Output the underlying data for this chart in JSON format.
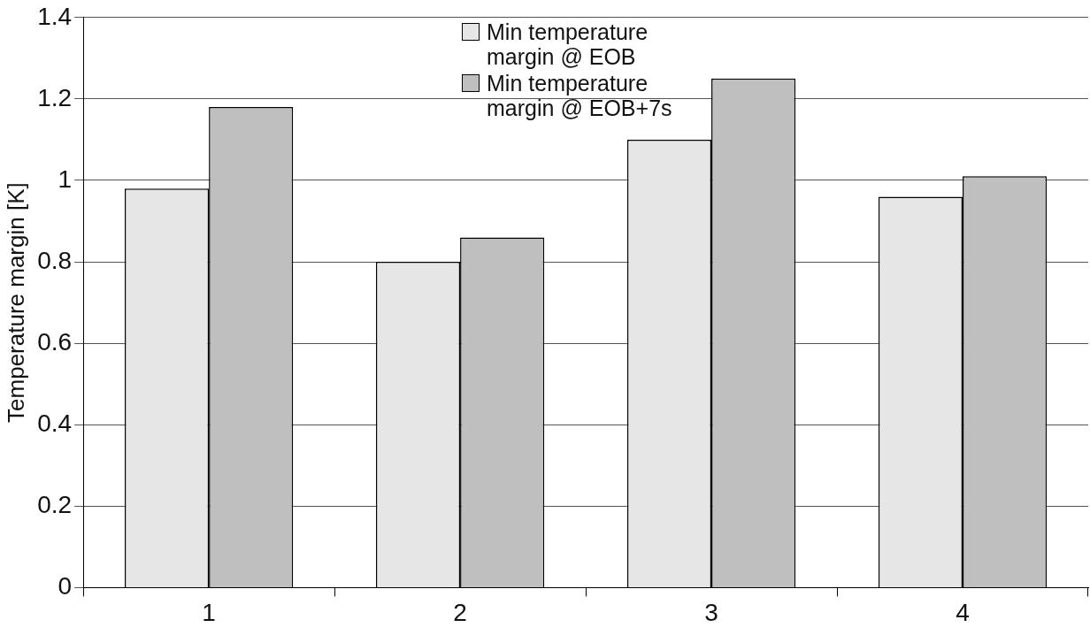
{
  "chart_data": {
    "type": "bar",
    "ylabel": "Temperature margin [K]",
    "categories": [
      "1",
      "2",
      "3",
      "4"
    ],
    "series": [
      {
        "name": "Min temperature margin @ EOB",
        "color": "#e6e6e6",
        "values": [
          0.98,
          0.8,
          1.1,
          0.96
        ]
      },
      {
        "name": "Min temperature margin @ EOB+7s",
        "color": "#bfbfbf",
        "values": [
          1.18,
          0.86,
          1.25,
          1.01
        ]
      }
    ],
    "ylim": [
      0,
      1.4
    ],
    "yticks": [
      0,
      0.2,
      0.4,
      0.6,
      0.8,
      1,
      1.2,
      1.4
    ],
    "grid": "y",
    "legend": "top"
  }
}
